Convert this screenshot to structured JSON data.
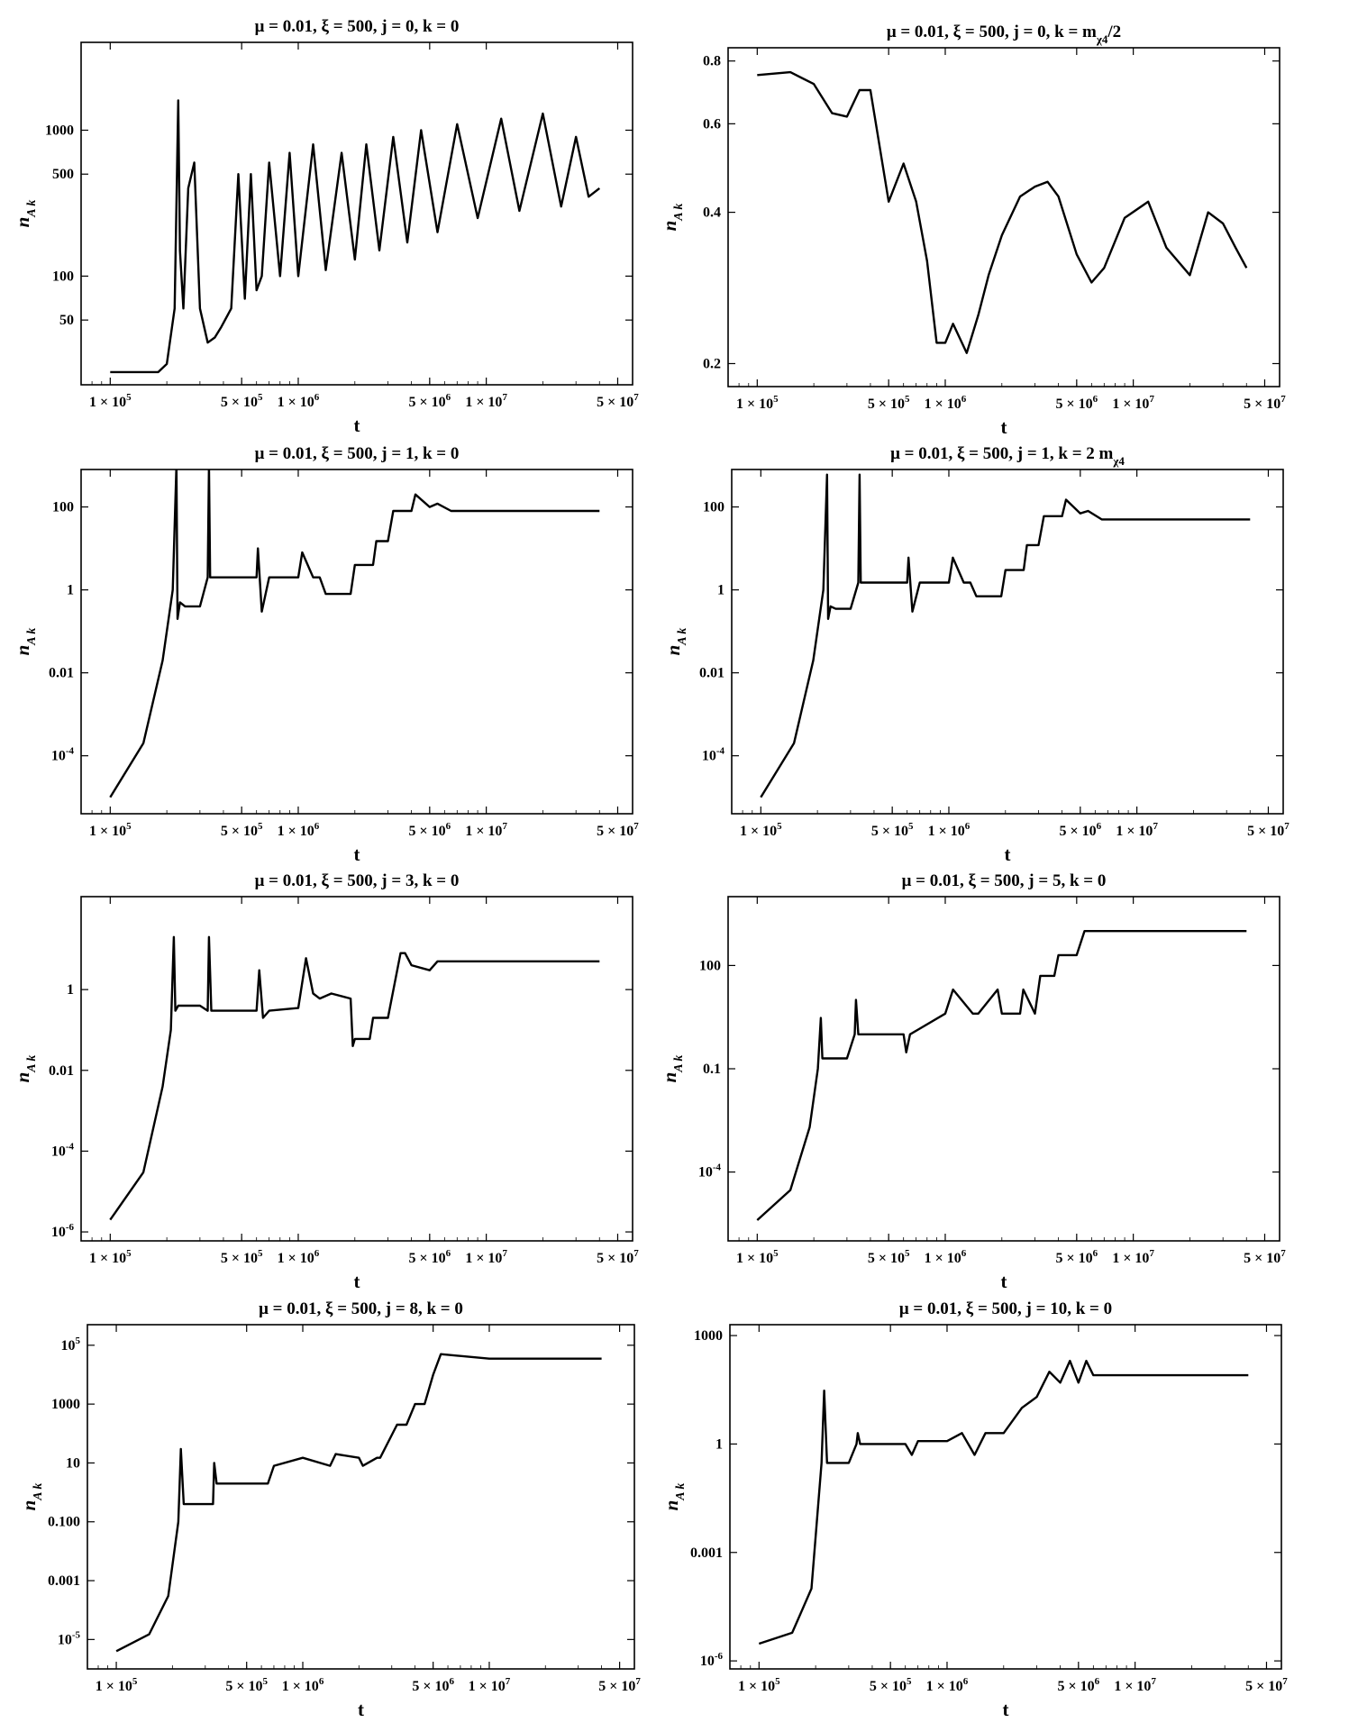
{
  "chart_data": [
    {
      "type": "line",
      "title": "μ = 0.01, ξ = 500, j = 0, k = 0",
      "xlabel": "t",
      "ylabel": "n_{A k}",
      "x_scale": "log",
      "y_scale": "log",
      "xlim": [
        70000,
        60000000
      ],
      "ylim": [
        18,
        4000
      ],
      "x_ticks": [
        {
          "value": 100000,
          "label": "1 × 10^5"
        },
        {
          "value": 500000,
          "label": "5 × 10^5"
        },
        {
          "value": 1000000,
          "label": "1 × 10^6"
        },
        {
          "value": 5000000,
          "label": "5 × 10^6"
        },
        {
          "value": 10000000,
          "label": "1 × 10^7"
        },
        {
          "value": 50000000,
          "label": "5 × 10^7"
        }
      ],
      "y_ticks": [
        {
          "value": 50,
          "label": "50"
        },
        {
          "value": 100,
          "label": "100"
        },
        {
          "value": 500,
          "label": "500"
        },
        {
          "value": 1000,
          "label": "1000"
        }
      ],
      "series": [
        {
          "x": [
            100000,
            180000,
            200000,
            220000,
            230000,
            235000,
            245000,
            260000,
            280000,
            300000,
            330000,
            360000,
            390000,
            440000,
            480000,
            520000,
            560000,
            600000,
            640000,
            700000,
            800000,
            900000,
            1000000,
            1200000,
            1400000,
            1700000,
            2000000,
            2300000,
            2700000,
            3200000,
            3800000,
            4500000,
            5500000,
            7000000,
            9000000,
            12000000,
            15000000,
            20000000,
            25000000,
            30000000,
            35000000,
            40000000
          ],
          "y": [
            22,
            22,
            25,
            60,
            1600,
            150,
            60,
            400,
            600,
            60,
            35,
            38,
            45,
            60,
            500,
            70,
            500,
            80,
            100,
            600,
            100,
            700,
            100,
            800,
            110,
            700,
            130,
            800,
            150,
            900,
            170,
            1000,
            200,
            1100,
            250,
            1200,
            280,
            1300,
            300,
            900,
            350,
            400
          ]
        }
      ]
    },
    {
      "type": "line",
      "title": "μ = 0.01, ξ = 500, j = 0, k = m_{χ4}/2",
      "xlabel": "t",
      "ylabel": "n_{A k}",
      "x_scale": "log",
      "y_scale": "log",
      "xlim": [
        70000,
        60000000
      ],
      "ylim": [
        0.18,
        0.85
      ],
      "x_ticks": [
        {
          "value": 100000,
          "label": "1 × 10^5"
        },
        {
          "value": 500000,
          "label": "5 × 10^5"
        },
        {
          "value": 1000000,
          "label": "1 × 10^6"
        },
        {
          "value": 5000000,
          "label": "5 × 10^6"
        },
        {
          "value": 10000000,
          "label": "1 × 10^7"
        },
        {
          "value": 50000000,
          "label": "5 × 10^7"
        }
      ],
      "y_ticks": [
        {
          "value": 0.2,
          "label": "0.2"
        },
        {
          "value": 0.4,
          "label": "0.4"
        },
        {
          "value": 0.6,
          "label": "0.6"
        },
        {
          "value": 0.8,
          "label": "0.8"
        }
      ],
      "series": [
        {
          "x": [
            100000,
            150000,
            200000,
            250000,
            300000,
            350000,
            400000,
            500000,
            600000,
            700000,
            800000,
            900000,
            1000000,
            1100000,
            1300000,
            1500000,
            1700000,
            2000000,
            2500000,
            3000000,
            3500000,
            4000000,
            5000000,
            6000000,
            7000000,
            9000000,
            12000000,
            15000000,
            20000000,
            25000000,
            30000000,
            35000000,
            40000000
          ],
          "y": [
            0.75,
            0.76,
            0.72,
            0.63,
            0.62,
            0.7,
            0.7,
            0.42,
            0.5,
            0.42,
            0.32,
            0.22,
            0.22,
            0.24,
            0.21,
            0.25,
            0.3,
            0.36,
            0.43,
            0.45,
            0.46,
            0.43,
            0.33,
            0.29,
            0.31,
            0.39,
            0.42,
            0.34,
            0.3,
            0.4,
            0.38,
            0.34,
            0.31
          ]
        }
      ]
    },
    {
      "type": "line",
      "title": "μ = 0.01, ξ = 500, j = 1, k = 0",
      "xlabel": "t",
      "ylabel": "n_{A k}",
      "x_scale": "log",
      "y_scale": "log",
      "xlim": [
        70000,
        60000000
      ],
      "ylim": [
        4e-06,
        800
      ],
      "x_ticks": [
        {
          "value": 100000,
          "label": "1 × 10^5"
        },
        {
          "value": 500000,
          "label": "5 × 10^5"
        },
        {
          "value": 1000000,
          "label": "1 × 10^6"
        },
        {
          "value": 5000000,
          "label": "5 × 10^6"
        },
        {
          "value": 10000000,
          "label": "1 × 10^7"
        },
        {
          "value": 50000000,
          "label": "5 × 10^7"
        }
      ],
      "y_ticks": [
        {
          "value": 0.0001,
          "label": "10^-4"
        },
        {
          "value": 0.01,
          "label": "0.01"
        },
        {
          "value": 1,
          "label": "1"
        },
        {
          "value": 100,
          "label": "100"
        }
      ],
      "series": [
        {
          "x": [
            100000,
            150000,
            190000,
            215000,
            225000,
            228000,
            235000,
            250000,
            300000,
            330000,
            335000,
            340000,
            600000,
            610000,
            640000,
            700000,
            1000000,
            1050000,
            1200000,
            1300000,
            1400000,
            1500000,
            1900000,
            2000000,
            2500000,
            2600000,
            3000000,
            3200000,
            4000000,
            4200000,
            5000000,
            5500000,
            6500000,
            10000000,
            40000000
          ],
          "y": [
            1e-05,
            0.0002,
            0.02,
            1,
            1000,
            0.2,
            0.5,
            0.4,
            0.4,
            2,
            1000,
            2,
            2,
            10,
            0.3,
            2,
            2,
            8,
            2,
            2,
            0.8,
            0.8,
            0.8,
            4,
            4,
            15,
            15,
            80,
            80,
            200,
            100,
            120,
            80,
            80,
            80
          ]
        }
      ]
    },
    {
      "type": "line",
      "title": "μ = 0.01, ξ = 500, j = 1, k = 2 m_{χ4}",
      "xlabel": "t",
      "ylabel": "n_{A k}",
      "x_scale": "log",
      "y_scale": "log",
      "xlim": [
        70000,
        60000000
      ],
      "ylim": [
        4e-06,
        800
      ],
      "x_ticks": [
        {
          "value": 100000,
          "label": "1 × 10^5"
        },
        {
          "value": 500000,
          "label": "5 × 10^5"
        },
        {
          "value": 1000000,
          "label": "1 × 10^6"
        },
        {
          "value": 5000000,
          "label": "5 × 10^6"
        },
        {
          "value": 10000000,
          "label": "1 × 10^7"
        },
        {
          "value": 50000000,
          "label": "5 × 10^7"
        }
      ],
      "y_ticks": [
        {
          "value": 0.0001,
          "label": "10^-4"
        },
        {
          "value": 0.01,
          "label": "0.01"
        },
        {
          "value": 1,
          "label": "1"
        },
        {
          "value": 100,
          "label": "100"
        }
      ],
      "series": [
        {
          "x": [
            100000,
            150000,
            190000,
            215000,
            225000,
            228000,
            235000,
            250000,
            300000,
            330000,
            335000,
            340000,
            600000,
            610000,
            640000,
            700000,
            1000000,
            1050000,
            1200000,
            1300000,
            1400000,
            1500000,
            1900000,
            2000000,
            2500000,
            2600000,
            3000000,
            3200000,
            4000000,
            4200000,
            5000000,
            5500000,
            6500000,
            10000000,
            40000000
          ],
          "y": [
            1e-05,
            0.0002,
            0.02,
            1,
            600,
            0.2,
            0.4,
            0.35,
            0.35,
            1.5,
            600,
            1.5,
            1.5,
            6,
            0.3,
            1.5,
            1.5,
            6,
            1.5,
            1.5,
            0.7,
            0.7,
            0.7,
            3,
            3,
            12,
            12,
            60,
            60,
            150,
            70,
            80,
            50,
            50,
            50
          ]
        }
      ]
    },
    {
      "type": "line",
      "title": "μ = 0.01, ξ = 500, j = 3, k = 0",
      "xlabel": "t",
      "ylabel": "n_{A k}",
      "x_scale": "log",
      "y_scale": "log",
      "xlim": [
        70000,
        60000000
      ],
      "ylim": [
        6e-07,
        200
      ],
      "x_ticks": [
        {
          "value": 100000,
          "label": "1 × 10^5"
        },
        {
          "value": 500000,
          "label": "5 × 10^5"
        },
        {
          "value": 1000000,
          "label": "1 × 10^6"
        },
        {
          "value": 5000000,
          "label": "5 × 10^6"
        },
        {
          "value": 10000000,
          "label": "1 × 10^7"
        },
        {
          "value": 50000000,
          "label": "5 × 10^7"
        }
      ],
      "y_ticks": [
        {
          "value": 1e-06,
          "label": "10^-6"
        },
        {
          "value": 0.0001,
          "label": "10^-4"
        },
        {
          "value": 0.01,
          "label": "0.01"
        },
        {
          "value": 1,
          "label": "1"
        }
      ],
      "series": [
        {
          "x": [
            100000,
            150000,
            190000,
            210000,
            218000,
            222000,
            230000,
            250000,
            300000,
            330000,
            335000,
            345000,
            360000,
            600000,
            620000,
            650000,
            700000,
            1000000,
            1100000,
            1200000,
            1300000,
            1500000,
            1900000,
            1950000,
            2000000,
            2400000,
            2500000,
            2700000,
            3000000,
            3500000,
            3700000,
            4000000,
            5000000,
            5500000,
            10000000,
            40000000
          ],
          "y": [
            2e-06,
            3e-05,
            0.004,
            0.1,
            20,
            0.3,
            0.4,
            0.4,
            0.4,
            0.3,
            20,
            0.3,
            0.3,
            0.3,
            3,
            0.2,
            0.3,
            0.35,
            6,
            0.8,
            0.6,
            0.8,
            0.6,
            0.04,
            0.06,
            0.06,
            0.2,
            0.2,
            0.2,
            8,
            8,
            4,
            3,
            5,
            5,
            5
          ]
        }
      ]
    },
    {
      "type": "line",
      "title": "μ = 0.01, ξ = 500, j = 5, k = 0",
      "xlabel": "t",
      "ylabel": "n_{A k}",
      "x_scale": "log",
      "y_scale": "log",
      "xlim": [
        70000,
        60000000
      ],
      "ylim": [
        1e-06,
        10000
      ],
      "x_ticks": [
        {
          "value": 100000,
          "label": "1 × 10^5"
        },
        {
          "value": 500000,
          "label": "5 × 10^5"
        },
        {
          "value": 1000000,
          "label": "1 × 10^6"
        },
        {
          "value": 5000000,
          "label": "5 × 10^6"
        },
        {
          "value": 10000000,
          "label": "1 × 10^7"
        },
        {
          "value": 50000000,
          "label": "5 × 10^7"
        }
      ],
      "y_ticks": [
        {
          "value": 0.0001,
          "label": "10^-4"
        },
        {
          "value": 0.1,
          "label": "0.1"
        },
        {
          "value": 100,
          "label": "100"
        }
      ],
      "series": [
        {
          "x": [
            100000,
            150000,
            190000,
            210000,
            218000,
            222000,
            300000,
            330000,
            335000,
            345000,
            600000,
            620000,
            650000,
            1000000,
            1100000,
            1400000,
            1500000,
            1900000,
            2000000,
            2500000,
            2600000,
            3000000,
            3200000,
            3800000,
            4000000,
            5000000,
            5500000,
            10000000,
            40000000
          ],
          "y": [
            4e-06,
            3e-05,
            0.002,
            0.1,
            3,
            0.2,
            0.2,
            1,
            10,
            1,
            1,
            0.3,
            1,
            4,
            20,
            4,
            4,
            20,
            4,
            4,
            20,
            4,
            50,
            50,
            200,
            200,
            1000,
            1000,
            1000
          ]
        }
      ]
    },
    {
      "type": "line",
      "title": "μ = 0.01, ξ = 500, j = 8, k = 0",
      "xlabel": "t",
      "ylabel": "n_{A k}",
      "x_scale": "log",
      "y_scale": "log",
      "xlim": [
        70000,
        60000000
      ],
      "ylim": [
        1e-06,
        500000
      ],
      "x_ticks": [
        {
          "value": 100000,
          "label": "1 × 10^5"
        },
        {
          "value": 500000,
          "label": "5 × 10^5"
        },
        {
          "value": 1000000,
          "label": "1 × 10^6"
        },
        {
          "value": 5000000,
          "label": "5 × 10^6"
        },
        {
          "value": 10000000,
          "label": "1 × 10^7"
        },
        {
          "value": 50000000,
          "label": "5 × 10^7"
        }
      ],
      "y_ticks": [
        {
          "value": 1e-05,
          "label": "10^-5"
        },
        {
          "value": 0.001,
          "label": "0.001"
        },
        {
          "value": 0.1,
          "label": "0.100"
        },
        {
          "value": 10,
          "label": "10"
        },
        {
          "value": 1000,
          "label": "1000"
        },
        {
          "value": 100000,
          "label": "10^5"
        }
      ],
      "series": [
        {
          "x": [
            100000,
            150000,
            190000,
            215000,
            222000,
            230000,
            300000,
            330000,
            335000,
            345000,
            600000,
            650000,
            700000,
            1000000,
            1400000,
            1500000,
            2000000,
            2100000,
            2500000,
            2600000,
            3200000,
            3600000,
            4000000,
            4500000,
            5000000,
            5500000,
            10000000,
            40000000
          ],
          "y": [
            4e-06,
            1.5e-05,
            0.0003,
            0.1,
            30,
            0.4,
            0.4,
            0.4,
            10,
            2,
            2,
            2,
            8,
            15,
            8,
            20,
            15,
            8,
            15,
            15,
            200,
            200,
            1000,
            1000,
            10000,
            50000,
            35000,
            35000
          ]
        }
      ]
    },
    {
      "type": "line",
      "title": "μ = 0.01, ξ = 500, j = 10, k = 0",
      "xlabel": "t",
      "ylabel": "n_{A k}",
      "x_scale": "log",
      "y_scale": "log",
      "xlim": [
        70000,
        60000000
      ],
      "ylim": [
        6e-07,
        2000
      ],
      "x_ticks": [
        {
          "value": 100000,
          "label": "1 × 10^5"
        },
        {
          "value": 500000,
          "label": "5 × 10^5"
        },
        {
          "value": 1000000,
          "label": "1 × 10^6"
        },
        {
          "value": 5000000,
          "label": "5 × 10^6"
        },
        {
          "value": 10000000,
          "label": "1 × 10^7"
        },
        {
          "value": 50000000,
          "label": "5 × 10^7"
        }
      ],
      "y_ticks": [
        {
          "value": 1e-06,
          "label": "10^-6"
        },
        {
          "value": 0.001,
          "label": "0.001"
        },
        {
          "value": 1,
          "label": "1"
        },
        {
          "value": 1000,
          "label": "1000"
        }
      ],
      "series": [
        {
          "x": [
            100000,
            150000,
            190000,
            215000,
            222000,
            230000,
            300000,
            330000,
            335000,
            345000,
            600000,
            650000,
            700000,
            1000000,
            1200000,
            1400000,
            1600000,
            2000000,
            2500000,
            3000000,
            3500000,
            4000000,
            4500000,
            5000000,
            5500000,
            6000000,
            10000000,
            40000000
          ],
          "y": [
            3e-06,
            6e-06,
            0.0001,
            0.3,
            30,
            0.3,
            0.3,
            1,
            2,
            1,
            1,
            0.5,
            1.2,
            1.2,
            2,
            0.5,
            2,
            2,
            10,
            20,
            100,
            50,
            200,
            50,
            200,
            80,
            80,
            80
          ]
        }
      ]
    }
  ]
}
